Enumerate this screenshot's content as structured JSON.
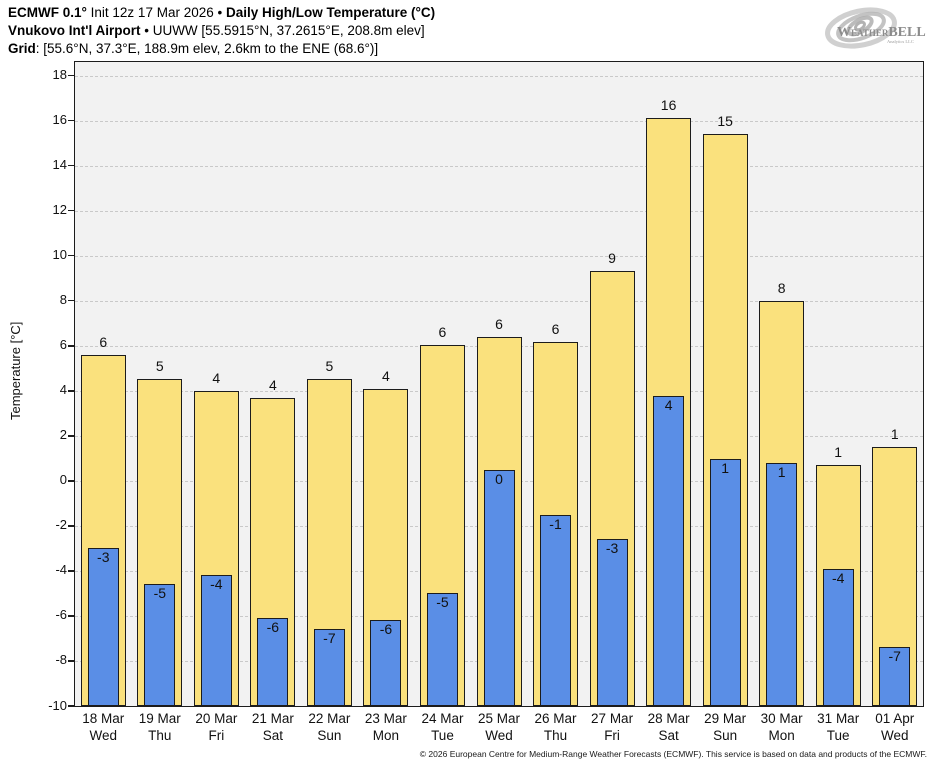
{
  "header": {
    "line1_bold1": "ECMWF 0.1°",
    "line1_regular": " Init 12z 17 Mar 2026 • ",
    "line1_bold2": "Daily High/Low Temperature (°C)",
    "line2_bold": "Vnukovo Int'l Airport",
    "line2_regular": " • UUWW [55.5915°N, 37.2615°E, 208.8m elev]",
    "line3_bold": "Grid",
    "line3_regular": ": [55.6°N, 37.3°E, 188.9m elev, 2.6km to the ENE (68.6°)]"
  },
  "logo": {
    "name_w": "W",
    "name_eather": "EATHER",
    "name_bell": "BELL",
    "sub": "Analytics LLC",
    "swirl_color": "#a9a9a9",
    "text_color": "#8c8c8c"
  },
  "chart_data": {
    "type": "bar",
    "title": "Daily High/Low Temperature (°C)",
    "ylabel": "Temperature [°C]",
    "ylim": [
      -10,
      18
    ],
    "ytick_step": 2,
    "baseline": -10,
    "grid": "dash-dot",
    "plot_bg": "#f2f2f2",
    "legend_position": "none",
    "categories": [
      {
        "date": "18 Mar",
        "day": "Wed"
      },
      {
        "date": "19 Mar",
        "day": "Thu"
      },
      {
        "date": "20 Mar",
        "day": "Fri"
      },
      {
        "date": "21 Mar",
        "day": "Sat"
      },
      {
        "date": "22 Mar",
        "day": "Sun"
      },
      {
        "date": "23 Mar",
        "day": "Mon"
      },
      {
        "date": "24 Mar",
        "day": "Tue"
      },
      {
        "date": "25 Mar",
        "day": "Wed"
      },
      {
        "date": "26 Mar",
        "day": "Thu"
      },
      {
        "date": "27 Mar",
        "day": "Fri"
      },
      {
        "date": "28 Mar",
        "day": "Sat"
      },
      {
        "date": "29 Mar",
        "day": "Sun"
      },
      {
        "date": "30 Mar",
        "day": "Mon"
      },
      {
        "date": "31 Mar",
        "day": "Tue"
      },
      {
        "date": "01 Apr",
        "day": "Wed"
      }
    ],
    "series": [
      {
        "name": "daily-high",
        "color": "#fae17d",
        "values": [
          5.6,
          4.5,
          4.0,
          3.7,
          4.5,
          4.1,
          6.05,
          6.4,
          6.15,
          9.3,
          16.1,
          15.4,
          8.0,
          0.7,
          1.5
        ],
        "labels": [
          "6",
          "5",
          "4",
          "4",
          "5",
          "4",
          "6",
          "6",
          "6",
          "9",
          "16",
          "15",
          "8",
          "1",
          "1"
        ]
      },
      {
        "name": "daily-low",
        "color": "#5a8ee6",
        "values": [
          -3.0,
          -4.6,
          -4.2,
          -6.1,
          -6.6,
          -6.2,
          -5.0,
          0.5,
          -1.5,
          -2.6,
          3.75,
          0.95,
          0.8,
          -3.9,
          -7.4
        ],
        "labels": [
          "-3",
          "-5",
          "-4",
          "-6",
          "-7",
          "-6",
          "-5",
          "0",
          "-1",
          "-3",
          "4",
          "1",
          "1",
          "-4",
          "-7"
        ]
      }
    ]
  },
  "footer": {
    "copyright": "© 2026 European Centre for Medium-Range Weather Forecasts (ECMWF). This service is based on data and products of the ECMWF."
  }
}
